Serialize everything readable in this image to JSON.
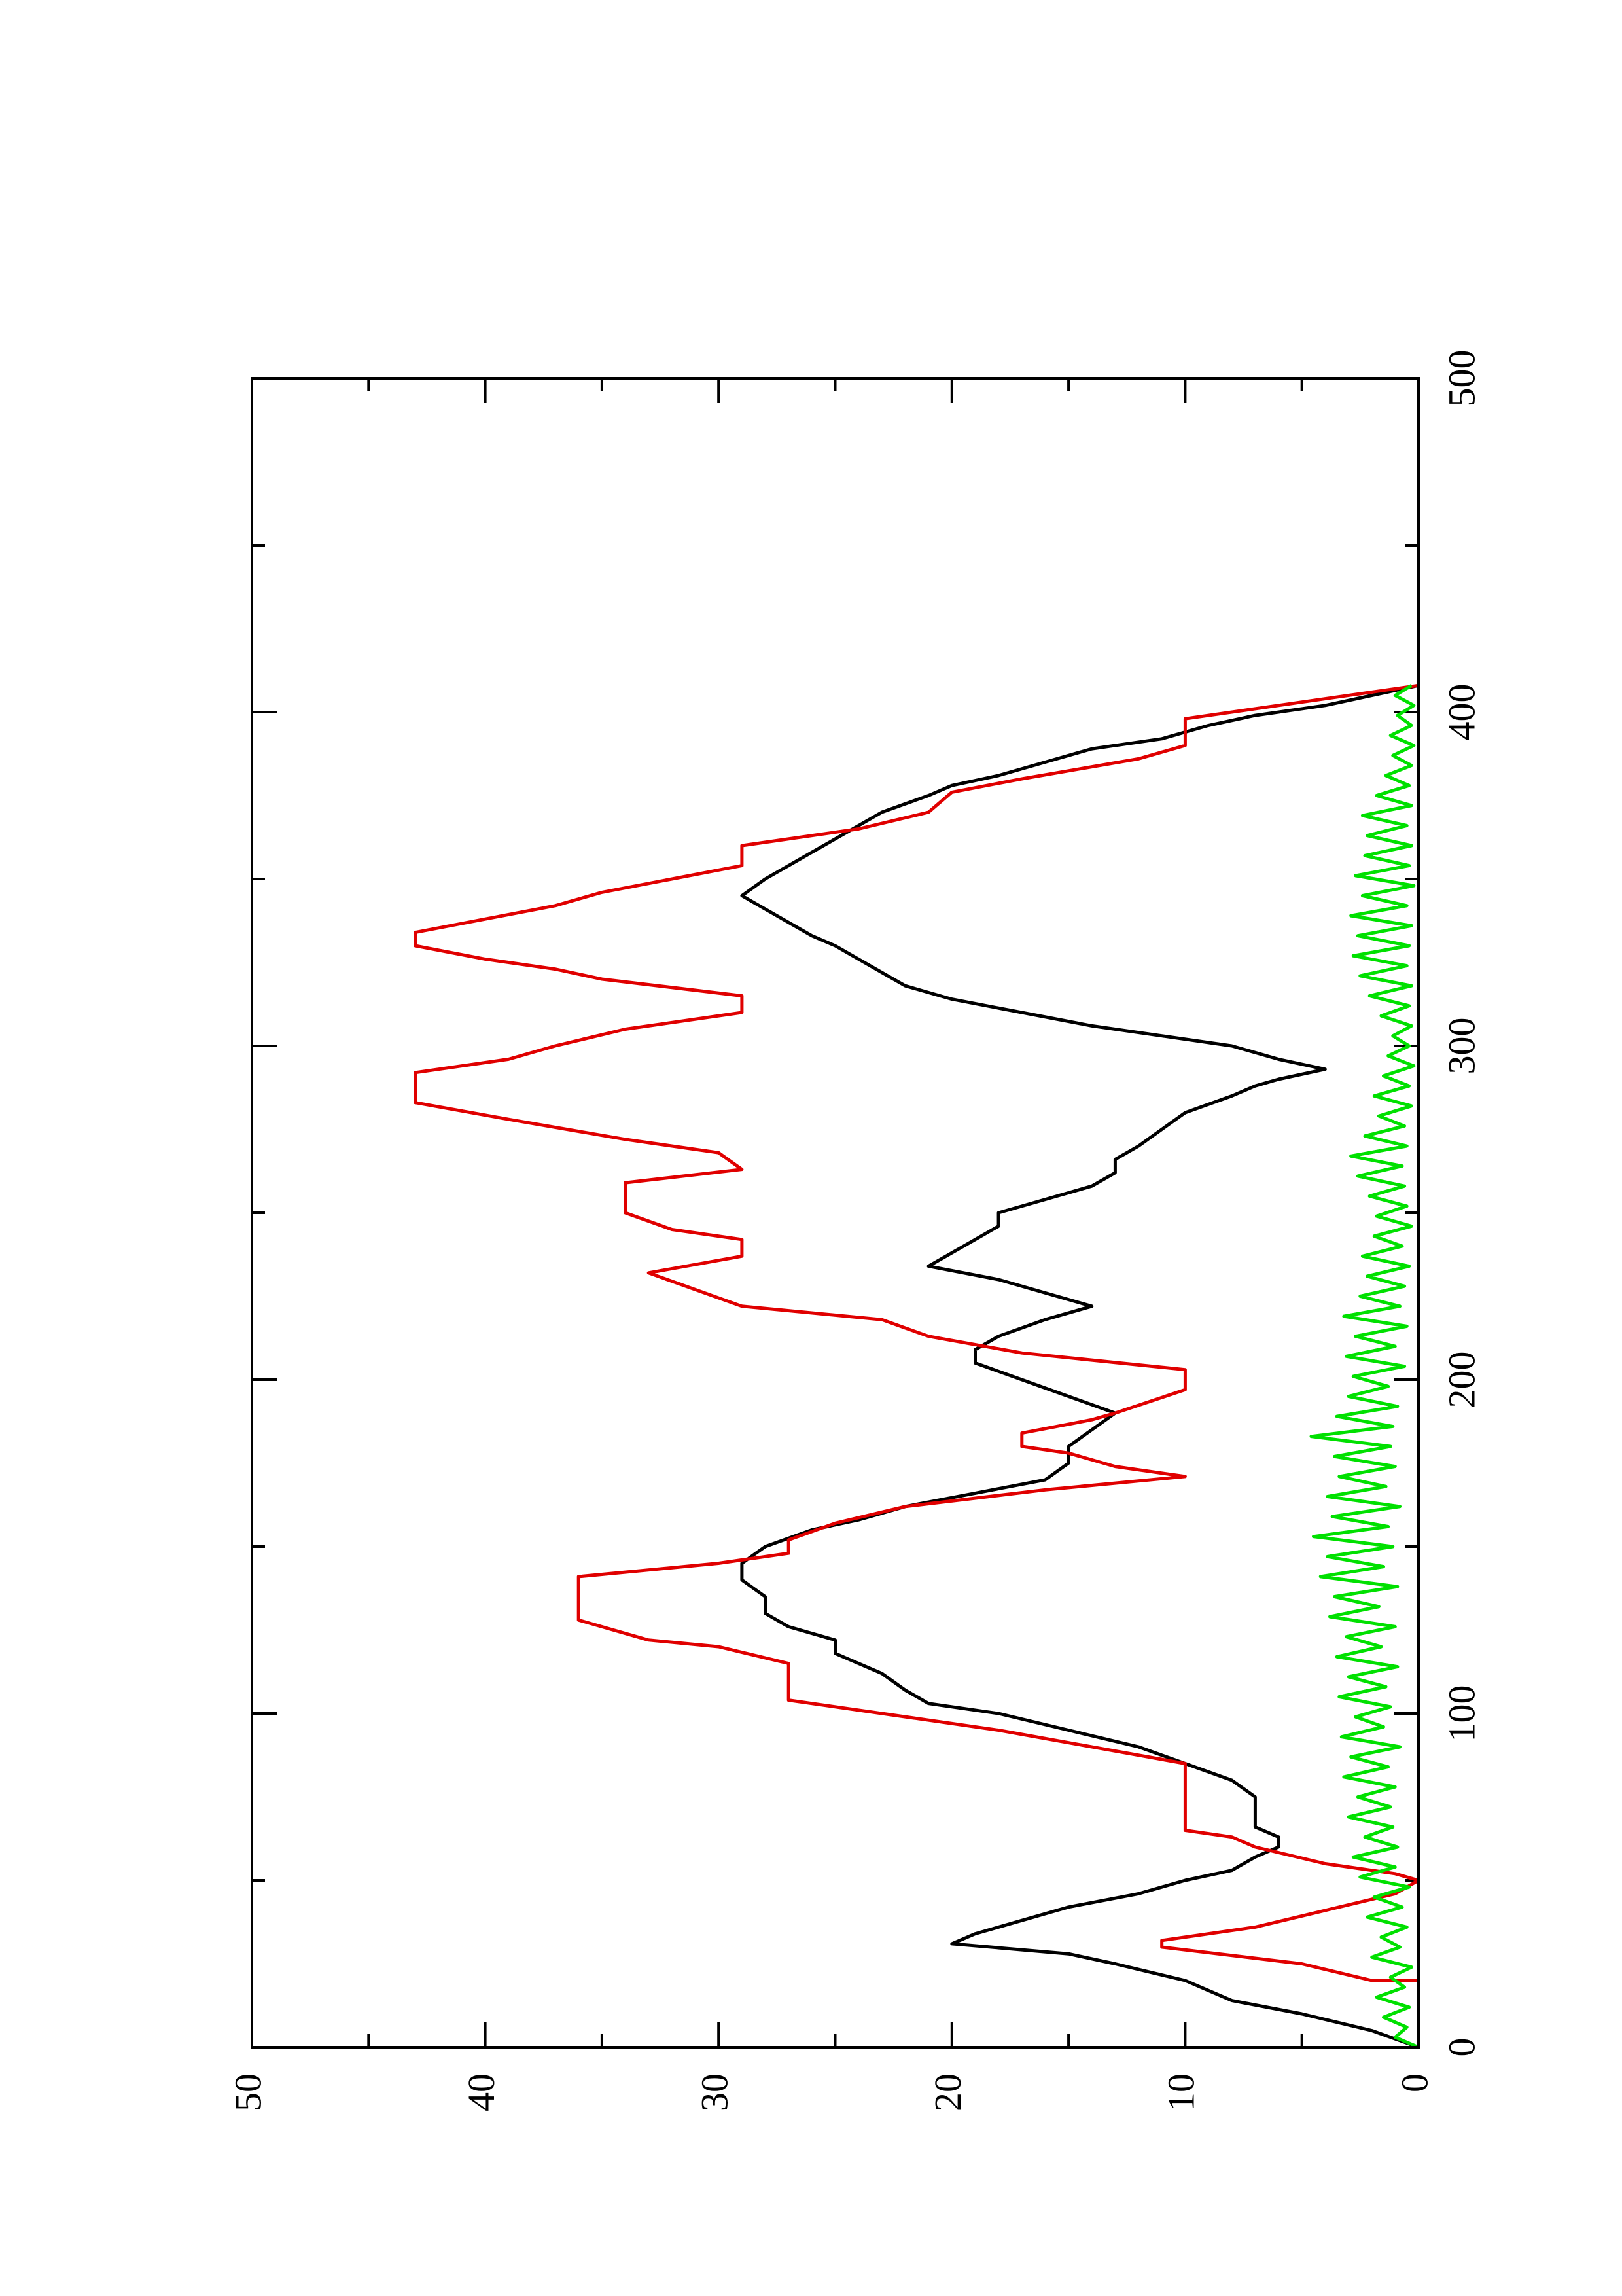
{
  "chart_data": {
    "type": "line",
    "title": "",
    "xlabel": "",
    "ylabel": "",
    "orientation": "rotated 90 degrees counter-clockwise on the page",
    "xlim": [
      0,
      500
    ],
    "ylim": [
      0,
      50
    ],
    "x_ticks": [
      0,
      100,
      200,
      300,
      400,
      500
    ],
    "y_ticks": [
      0,
      10,
      20,
      30,
      40,
      50
    ],
    "grid": false,
    "legend": "none",
    "series": [
      {
        "color": "#000000",
        "points": [
          [
            0,
            0
          ],
          [
            5,
            2
          ],
          [
            10,
            5
          ],
          [
            14,
            8
          ],
          [
            17,
            9
          ],
          [
            20,
            10
          ],
          [
            25,
            13
          ],
          [
            28,
            15
          ],
          [
            31,
            20
          ],
          [
            34,
            19
          ],
          [
            38,
            17
          ],
          [
            42,
            15
          ],
          [
            46,
            12
          ],
          [
            50,
            10
          ],
          [
            53,
            8
          ],
          [
            57,
            7
          ],
          [
            60,
            6
          ],
          [
            63,
            6
          ],
          [
            66,
            7
          ],
          [
            70,
            7
          ],
          [
            75,
            7
          ],
          [
            80,
            8
          ],
          [
            85,
            10
          ],
          [
            90,
            12
          ],
          [
            95,
            15
          ],
          [
            100,
            18
          ],
          [
            103,
            21
          ],
          [
            107,
            22
          ],
          [
            112,
            23
          ],
          [
            118,
            25
          ],
          [
            122,
            25
          ],
          [
            126,
            27
          ],
          [
            130,
            28
          ],
          [
            135,
            28
          ],
          [
            140,
            29
          ],
          [
            145,
            29
          ],
          [
            150,
            28
          ],
          [
            155,
            26
          ],
          [
            158,
            24
          ],
          [
            162,
            22
          ],
          [
            166,
            19
          ],
          [
            170,
            16
          ],
          [
            175,
            15
          ],
          [
            180,
            15
          ],
          [
            185,
            14
          ],
          [
            190,
            13
          ],
          [
            195,
            15
          ],
          [
            200,
            17
          ],
          [
            205,
            19
          ],
          [
            209,
            19
          ],
          [
            213,
            18
          ],
          [
            218,
            16
          ],
          [
            222,
            14
          ],
          [
            226,
            16
          ],
          [
            230,
            18
          ],
          [
            234,
            21
          ],
          [
            238,
            20
          ],
          [
            242,
            19
          ],
          [
            246,
            18
          ],
          [
            250,
            18
          ],
          [
            254,
            16
          ],
          [
            258,
            14
          ],
          [
            262,
            13
          ],
          [
            266,
            13
          ],
          [
            270,
            12
          ],
          [
            275,
            11
          ],
          [
            280,
            10
          ],
          [
            285,
            8
          ],
          [
            288,
            7
          ],
          [
            290,
            6
          ],
          [
            293,
            4
          ],
          [
            296,
            6
          ],
          [
            300,
            8
          ],
          [
            303,
            11
          ],
          [
            306,
            14
          ],
          [
            310,
            17
          ],
          [
            314,
            20
          ],
          [
            318,
            22
          ],
          [
            322,
            23
          ],
          [
            326,
            24
          ],
          [
            330,
            25
          ],
          [
            333,
            26
          ],
          [
            337,
            27
          ],
          [
            341,
            28
          ],
          [
            345,
            29
          ],
          [
            350,
            28
          ],
          [
            354,
            27
          ],
          [
            358,
            26
          ],
          [
            362,
            25
          ],
          [
            366,
            24
          ],
          [
            370,
            23
          ],
          [
            375,
            21
          ],
          [
            378,
            20
          ],
          [
            381,
            18
          ],
          [
            385,
            16
          ],
          [
            389,
            14
          ],
          [
            392,
            11
          ],
          [
            396,
            9
          ],
          [
            399,
            7
          ],
          [
            402,
            4
          ],
          [
            405,
            2
          ],
          [
            408,
            0
          ]
        ]
      },
      {
        "color": "#e00000",
        "points": [
          [
            0,
            0
          ],
          [
            20,
            0
          ],
          [
            20,
            2
          ],
          [
            25,
            5
          ],
          [
            30,
            11
          ],
          [
            32,
            11
          ],
          [
            36,
            7
          ],
          [
            41,
            4
          ],
          [
            46,
            1
          ],
          [
            50,
            0
          ],
          [
            52,
            1
          ],
          [
            55,
            4
          ],
          [
            60,
            7
          ],
          [
            63,
            8
          ],
          [
            65,
            10
          ],
          [
            85,
            10
          ],
          [
            95,
            18
          ],
          [
            100,
            23
          ],
          [
            104,
            27
          ],
          [
            115,
            27
          ],
          [
            120,
            30
          ],
          [
            122,
            33
          ],
          [
            128,
            36
          ],
          [
            141,
            36
          ],
          [
            145,
            30
          ],
          [
            148,
            27
          ],
          [
            152,
            27
          ],
          [
            157,
            25
          ],
          [
            162,
            22
          ],
          [
            167,
            16
          ],
          [
            171,
            10
          ],
          [
            174,
            13
          ],
          [
            178,
            15
          ],
          [
            180,
            17
          ],
          [
            184,
            17
          ],
          [
            188,
            14
          ],
          [
            190,
            13
          ],
          [
            197,
            10
          ],
          [
            203,
            10
          ],
          [
            208,
            17
          ],
          [
            213,
            21
          ],
          [
            218,
            23
          ],
          [
            222,
            29
          ],
          [
            232,
            33
          ],
          [
            237,
            29
          ],
          [
            242,
            29
          ],
          [
            245,
            32
          ],
          [
            250,
            34
          ],
          [
            259,
            34
          ],
          [
            263,
            29
          ],
          [
            268,
            30
          ],
          [
            272,
            34
          ],
          [
            278,
            39
          ],
          [
            283,
            43
          ],
          [
            292,
            43
          ],
          [
            296,
            39
          ],
          [
            300,
            37
          ],
          [
            305,
            34
          ],
          [
            310,
            29
          ],
          [
            315,
            29
          ],
          [
            320,
            35
          ],
          [
            323,
            37
          ],
          [
            326,
            40
          ],
          [
            330,
            43
          ],
          [
            334,
            43
          ],
          [
            338,
            40
          ],
          [
            342,
            37
          ],
          [
            346,
            35
          ],
          [
            350,
            32
          ],
          [
            354,
            29
          ],
          [
            360,
            29
          ],
          [
            365,
            24
          ],
          [
            370,
            21
          ],
          [
            376,
            20
          ],
          [
            380,
            17
          ],
          [
            386,
            12
          ],
          [
            390,
            10
          ],
          [
            398,
            10
          ],
          [
            403,
            5
          ],
          [
            408,
            0
          ]
        ]
      },
      {
        "color": "#00e000",
        "points": [
          [
            0,
            0
          ],
          [
            3,
            1
          ],
          [
            6,
            0.5
          ],
          [
            9,
            1.5
          ],
          [
            12,
            0.4
          ],
          [
            15,
            1.8
          ],
          [
            18,
            0.6
          ],
          [
            21,
            1.2
          ],
          [
            24,
            0.3
          ],
          [
            27,
            2
          ],
          [
            30,
            0.8
          ],
          [
            33,
            1.6
          ],
          [
            36,
            0.5
          ],
          [
            39,
            2.2
          ],
          [
            42,
            0.7
          ],
          [
            45,
            1.9
          ],
          [
            48,
            0.4
          ],
          [
            51,
            2.5
          ],
          [
            54,
            1
          ],
          [
            57,
            2.8
          ],
          [
            60,
            0.9
          ],
          [
            63,
            2.3
          ],
          [
            66,
            1.1
          ],
          [
            69,
            3
          ],
          [
            72,
            1.2
          ],
          [
            75,
            2.6
          ],
          [
            78,
            1
          ],
          [
            81,
            3.2
          ],
          [
            84,
            1.3
          ],
          [
            87,
            2.9
          ],
          [
            90,
            0.8
          ],
          [
            93,
            3.3
          ],
          [
            96,
            1.5
          ],
          [
            99,
            2.7
          ],
          [
            102,
            1.2
          ],
          [
            105,
            3.4
          ],
          [
            108,
            1.4
          ],
          [
            111,
            3
          ],
          [
            114,
            0.9
          ],
          [
            117,
            3.5
          ],
          [
            120,
            1.6
          ],
          [
            123,
            3.1
          ],
          [
            126,
            1
          ],
          [
            129,
            3.8
          ],
          [
            132,
            1.7
          ],
          [
            135,
            3.6
          ],
          [
            138,
            0.9
          ],
          [
            141,
            4.2
          ],
          [
            144,
            1.5
          ],
          [
            147,
            3.9
          ],
          [
            150,
            1.1
          ],
          [
            153,
            4.5
          ],
          [
            156,
            1.3
          ],
          [
            159,
            3.7
          ],
          [
            162,
            0.8
          ],
          [
            165,
            3.9
          ],
          [
            168,
            1.4
          ],
          [
            171,
            3.4
          ],
          [
            174,
            1
          ],
          [
            177,
            3.6
          ],
          [
            180,
            1.2
          ],
          [
            183,
            4.6
          ],
          [
            186,
            1.1
          ],
          [
            189,
            3.5
          ],
          [
            192,
            0.9
          ],
          [
            195,
            3
          ],
          [
            198,
            1.3
          ],
          [
            201,
            2.8
          ],
          [
            204,
            0.6
          ],
          [
            207,
            3.1
          ],
          [
            210,
            1
          ],
          [
            213,
            2.7
          ],
          [
            216,
            0.5
          ],
          [
            219,
            3.2
          ],
          [
            222,
            0.8
          ],
          [
            225,
            2.5
          ],
          [
            228,
            0.6
          ],
          [
            231,
            2.2
          ],
          [
            234,
            0.4
          ],
          [
            237,
            2.4
          ],
          [
            240,
            0.7
          ],
          [
            243,
            1.9
          ],
          [
            246,
            0.3
          ],
          [
            249,
            1.8
          ],
          [
            252,
            0.5
          ],
          [
            255,
            2.1
          ],
          [
            258,
            0.6
          ],
          [
            261,
            2.6
          ],
          [
            264,
            0.7
          ],
          [
            267,
            2.9
          ],
          [
            270,
            0.5
          ],
          [
            273,
            2.3
          ],
          [
            276,
            0.6
          ],
          [
            279,
            1.7
          ],
          [
            282,
            0.3
          ],
          [
            285,
            1.9
          ],
          [
            288,
            0.4
          ],
          [
            291,
            1.5
          ],
          [
            294,
            0.2
          ],
          [
            297,
            1.3
          ],
          [
            300,
            0.4
          ],
          [
            303,
            1.1
          ],
          [
            306,
            0.3
          ],
          [
            309,
            1.6
          ],
          [
            312,
            0.4
          ],
          [
            315,
            2.1
          ],
          [
            318,
            0.3
          ],
          [
            321,
            2.5
          ],
          [
            324,
            0.5
          ],
          [
            327,
            2.8
          ],
          [
            330,
            0.4
          ],
          [
            333,
            2.6
          ],
          [
            336,
            0.3
          ],
          [
            339,
            2.9
          ],
          [
            342,
            0.5
          ],
          [
            345,
            2.4
          ],
          [
            348,
            0.2
          ],
          [
            351,
            2.7
          ],
          [
            354,
            0.4
          ],
          [
            357,
            2.3
          ],
          [
            360,
            0.3
          ],
          [
            363,
            2.2
          ],
          [
            366,
            0.5
          ],
          [
            369,
            2.4
          ],
          [
            372,
            0.3
          ],
          [
            375,
            1.8
          ],
          [
            378,
            0.4
          ],
          [
            381,
            1.4
          ],
          [
            384,
            0.3
          ],
          [
            387,
            1.1
          ],
          [
            390,
            0.2
          ],
          [
            393,
            1.2
          ],
          [
            396,
            0.3
          ],
          [
            399,
            0.9
          ],
          [
            402,
            0.2
          ],
          [
            405,
            1
          ],
          [
            408,
            0.3
          ]
        ]
      }
    ]
  }
}
